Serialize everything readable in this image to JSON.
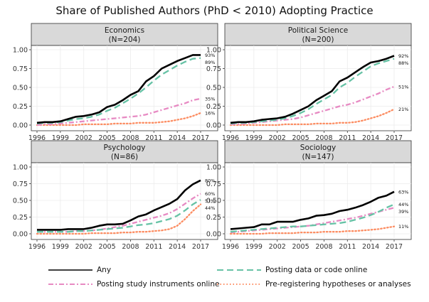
{
  "title": "Share of Published Authors (PhD < 2010) Adopting Practice",
  "colors": {
    "any": "#000000",
    "data": "#66c2a5",
    "instruments": "#e78ac3",
    "prereg": "#fc8d62",
    "strip": "#d9d9d9",
    "grid": "#ebebeb"
  },
  "legend": [
    {
      "key": "any",
      "label": "Any"
    },
    {
      "key": "data",
      "label": "Posting data or code online"
    },
    {
      "key": "instruments",
      "label": "Posting study instruments online"
    },
    {
      "key": "prereg",
      "label": "Pre-registering hypotheses or analyses"
    }
  ],
  "chart_data": [
    {
      "type": "line",
      "title": "Economics",
      "subtitle": "(N=204)",
      "x": [
        1996,
        1997,
        1998,
        1999,
        2000,
        2001,
        2002,
        2003,
        2004,
        2005,
        2006,
        2007,
        2008,
        2009,
        2010,
        2011,
        2012,
        2013,
        2014,
        2015,
        2016,
        2017
      ],
      "xticks": [
        1996,
        1999,
        2002,
        2005,
        2008,
        2011,
        2014,
        2017
      ],
      "yticks": [
        0.0,
        0.25,
        0.5,
        0.75,
        1.0
      ],
      "ytick_labels": [
        "0.00",
        "0.25",
        "0.50",
        "0.75",
        "1.00"
      ],
      "ylim": [
        0,
        1.0
      ],
      "series": [
        {
          "key": "any",
          "name": "Any",
          "end_label": "93%",
          "values": [
            0.03,
            0.04,
            0.04,
            0.05,
            0.08,
            0.11,
            0.12,
            0.14,
            0.17,
            0.24,
            0.27,
            0.33,
            0.4,
            0.45,
            0.58,
            0.65,
            0.75,
            0.8,
            0.85,
            0.89,
            0.93,
            0.93
          ]
        },
        {
          "key": "data",
          "name": "Posting data or code online",
          "end_label": "89%",
          "values": [
            0.02,
            0.03,
            0.03,
            0.04,
            0.06,
            0.08,
            0.09,
            0.11,
            0.14,
            0.19,
            0.23,
            0.29,
            0.35,
            0.42,
            0.5,
            0.59,
            0.67,
            0.73,
            0.79,
            0.84,
            0.88,
            0.89
          ]
        },
        {
          "key": "instruments",
          "name": "Posting study instruments online",
          "end_label": "35%",
          "values": [
            0.0,
            0.01,
            0.01,
            0.02,
            0.03,
            0.04,
            0.05,
            0.06,
            0.07,
            0.08,
            0.09,
            0.1,
            0.11,
            0.12,
            0.14,
            0.17,
            0.2,
            0.23,
            0.26,
            0.29,
            0.33,
            0.35
          ]
        },
        {
          "key": "prereg",
          "name": "Pre-registering hypotheses or analyses",
          "end_label": "16%",
          "values": [
            0.0,
            0.0,
            0.0,
            0.0,
            0.0,
            0.0,
            0.01,
            0.01,
            0.01,
            0.01,
            0.02,
            0.02,
            0.02,
            0.03,
            0.03,
            0.03,
            0.04,
            0.05,
            0.07,
            0.09,
            0.12,
            0.16
          ]
        }
      ]
    },
    {
      "type": "line",
      "title": "Political Science",
      "subtitle": "(N=200)",
      "x": [
        1996,
        1997,
        1998,
        1999,
        2000,
        2001,
        2002,
        2003,
        2004,
        2005,
        2006,
        2007,
        2008,
        2009,
        2010,
        2011,
        2012,
        2013,
        2014,
        2015,
        2016,
        2017
      ],
      "xticks": [
        1996,
        1999,
        2002,
        2005,
        2008,
        2011,
        2014,
        2017
      ],
      "yticks": [
        0.0,
        0.25,
        0.5,
        0.75,
        1.0
      ],
      "ytick_labels": [
        "0.00",
        "0.25",
        "0.50",
        "0.75",
        "1.00"
      ],
      "ylim": [
        0,
        1.0
      ],
      "series": [
        {
          "key": "any",
          "name": "Any",
          "end_label": "92%",
          "values": [
            0.03,
            0.04,
            0.04,
            0.05,
            0.07,
            0.08,
            0.09,
            0.11,
            0.15,
            0.2,
            0.25,
            0.33,
            0.39,
            0.45,
            0.58,
            0.63,
            0.7,
            0.77,
            0.83,
            0.85,
            0.88,
            0.92
          ]
        },
        {
          "key": "data",
          "name": "Posting data or code online",
          "end_label": "88%",
          "values": [
            0.02,
            0.03,
            0.03,
            0.04,
            0.05,
            0.06,
            0.07,
            0.09,
            0.12,
            0.16,
            0.21,
            0.28,
            0.34,
            0.4,
            0.5,
            0.56,
            0.64,
            0.71,
            0.78,
            0.82,
            0.85,
            0.88
          ]
        },
        {
          "key": "instruments",
          "name": "Posting study instruments online",
          "end_label": "51%",
          "values": [
            0.01,
            0.01,
            0.02,
            0.03,
            0.04,
            0.05,
            0.06,
            0.07,
            0.08,
            0.1,
            0.13,
            0.16,
            0.19,
            0.22,
            0.25,
            0.27,
            0.3,
            0.34,
            0.38,
            0.42,
            0.47,
            0.51
          ]
        },
        {
          "key": "prereg",
          "name": "Pre-registering hypotheses or analyses",
          "end_label": "21%",
          "values": [
            0.0,
            0.0,
            0.0,
            0.0,
            0.0,
            0.0,
            0.0,
            0.01,
            0.01,
            0.01,
            0.01,
            0.02,
            0.02,
            0.02,
            0.03,
            0.03,
            0.04,
            0.06,
            0.09,
            0.12,
            0.16,
            0.21
          ]
        }
      ]
    },
    {
      "type": "line",
      "title": "Psychology",
      "subtitle": "(N=86)",
      "x": [
        1996,
        1997,
        1998,
        1999,
        2000,
        2001,
        2002,
        2003,
        2004,
        2005,
        2006,
        2007,
        2008,
        2009,
        2010,
        2011,
        2012,
        2013,
        2014,
        2015,
        2016,
        2017
      ],
      "xticks": [
        1996,
        1999,
        2002,
        2005,
        2008,
        2011,
        2014,
        2017
      ],
      "yticks": [
        0.0,
        0.25,
        0.5,
        0.75,
        1.0
      ],
      "ytick_labels": [
        "0.00",
        "0.25",
        "0.50",
        "0.75",
        "1.00"
      ],
      "ylim": [
        0,
        1.0
      ],
      "series": [
        {
          "key": "any",
          "name": "Any",
          "end_label": "80%",
          "values": [
            0.06,
            0.06,
            0.06,
            0.06,
            0.07,
            0.07,
            0.07,
            0.09,
            0.12,
            0.14,
            0.14,
            0.15,
            0.2,
            0.26,
            0.29,
            0.35,
            0.4,
            0.45,
            0.52,
            0.65,
            0.74,
            0.8
          ]
        },
        {
          "key": "data",
          "name": "Posting data or code online",
          "end_label": "51%",
          "values": [
            0.03,
            0.03,
            0.03,
            0.03,
            0.03,
            0.04,
            0.04,
            0.05,
            0.06,
            0.07,
            0.08,
            0.09,
            0.11,
            0.13,
            0.14,
            0.16,
            0.19,
            0.22,
            0.27,
            0.35,
            0.44,
            0.51
          ]
        },
        {
          "key": "instruments",
          "name": "Posting study instruments online",
          "end_label": "60%",
          "values": [
            0.03,
            0.03,
            0.03,
            0.03,
            0.03,
            0.04,
            0.04,
            0.05,
            0.06,
            0.08,
            0.1,
            0.12,
            0.15,
            0.18,
            0.21,
            0.24,
            0.27,
            0.31,
            0.37,
            0.45,
            0.53,
            0.6
          ]
        },
        {
          "key": "prereg",
          "name": "Pre-registering hypotheses or analyses",
          "end_label": "44%",
          "values": [
            0.0,
            0.0,
            0.0,
            0.0,
            0.0,
            0.0,
            0.0,
            0.01,
            0.01,
            0.01,
            0.01,
            0.02,
            0.02,
            0.03,
            0.03,
            0.04,
            0.05,
            0.07,
            0.12,
            0.22,
            0.34,
            0.44
          ]
        }
      ]
    },
    {
      "type": "line",
      "title": "Sociology",
      "subtitle": "(N=147)",
      "x": [
        1996,
        1997,
        1998,
        1999,
        2000,
        2001,
        2002,
        2003,
        2004,
        2005,
        2006,
        2007,
        2008,
        2009,
        2010,
        2011,
        2012,
        2013,
        2014,
        2015,
        2016,
        2017
      ],
      "xticks": [
        1996,
        1999,
        2002,
        2005,
        2008,
        2011,
        2014,
        2017
      ],
      "yticks": [
        0.0,
        0.25,
        0.5,
        0.75,
        1.0
      ],
      "ytick_labels": [
        "0.00",
        "0.25",
        "0.50",
        "0.75",
        "1.00"
      ],
      "ylim": [
        0,
        1.0
      ],
      "series": [
        {
          "key": "any",
          "name": "Any",
          "end_label": "63%",
          "values": [
            0.07,
            0.08,
            0.09,
            0.1,
            0.14,
            0.14,
            0.18,
            0.18,
            0.18,
            0.21,
            0.23,
            0.27,
            0.28,
            0.3,
            0.34,
            0.36,
            0.39,
            0.43,
            0.48,
            0.54,
            0.57,
            0.63
          ]
        },
        {
          "key": "data",
          "name": "Posting data or code online",
          "end_label": "44%",
          "values": [
            0.03,
            0.04,
            0.05,
            0.06,
            0.07,
            0.08,
            0.09,
            0.1,
            0.11,
            0.11,
            0.12,
            0.13,
            0.14,
            0.15,
            0.16,
            0.18,
            0.21,
            0.24,
            0.28,
            0.33,
            0.39,
            0.44
          ]
        },
        {
          "key": "instruments",
          "name": "Posting study instruments online",
          "end_label": "39%",
          "values": [
            0.02,
            0.03,
            0.04,
            0.05,
            0.06,
            0.07,
            0.08,
            0.09,
            0.1,
            0.11,
            0.12,
            0.14,
            0.16,
            0.18,
            0.2,
            0.22,
            0.24,
            0.27,
            0.3,
            0.33,
            0.36,
            0.39
          ]
        },
        {
          "key": "prereg",
          "name": "Pre-registering hypotheses or analyses",
          "end_label": "11%",
          "values": [
            0.0,
            0.0,
            0.0,
            0.0,
            0.0,
            0.01,
            0.01,
            0.01,
            0.01,
            0.02,
            0.02,
            0.02,
            0.03,
            0.03,
            0.03,
            0.04,
            0.04,
            0.05,
            0.06,
            0.07,
            0.09,
            0.11
          ]
        }
      ]
    }
  ]
}
